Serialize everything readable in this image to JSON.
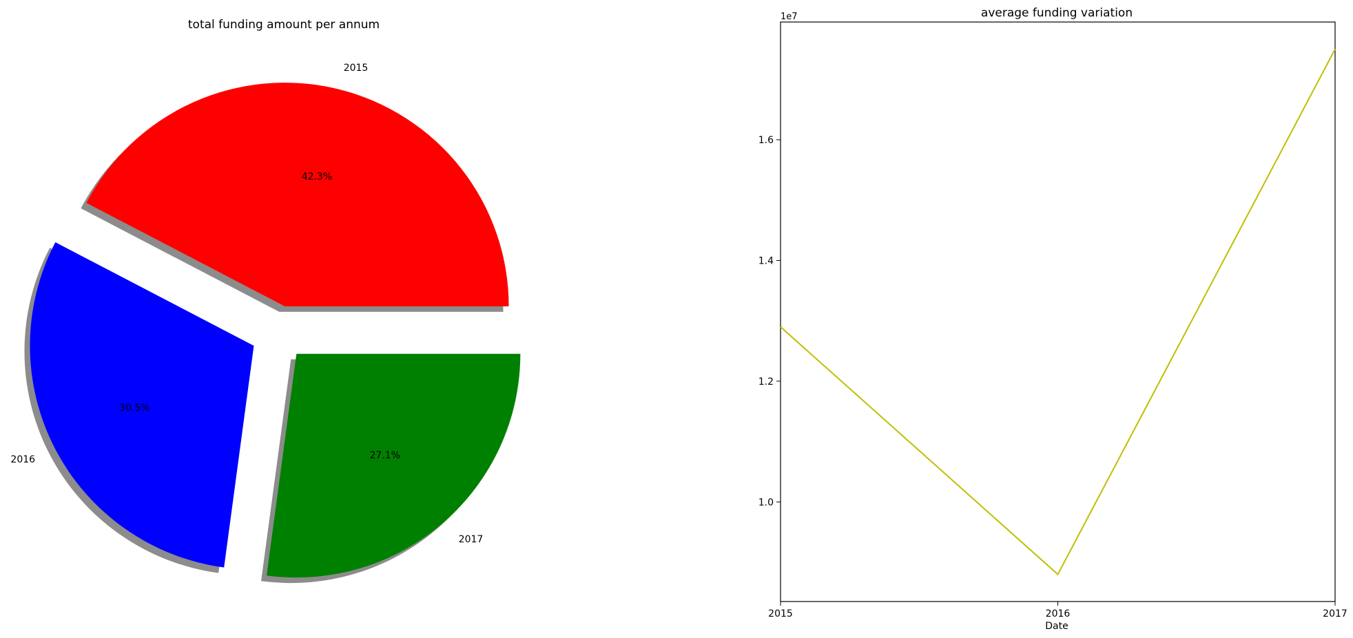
{
  "chart_data": [
    {
      "type": "pie",
      "title": "total funding amount per annum",
      "labels": [
        "2015",
        "2016",
        "2017"
      ],
      "values": [
        42.3,
        30.5,
        27.1
      ],
      "percent_labels": [
        "42.3%",
        "30.5%",
        "27.1%"
      ],
      "colors": [
        "#ff0000",
        "#0000ff",
        "#008000"
      ],
      "explode": true,
      "shadow": true
    },
    {
      "type": "line",
      "title": "average funding variation",
      "xlabel": "Date",
      "ylabel": "",
      "x": [
        "2015",
        "2016",
        "2017"
      ],
      "y": [
        12900000,
        8800000,
        17500000
      ],
      "y_offset_label": "1e7",
      "y_ticks": [
        "1.0",
        "1.2",
        "1.4",
        "1.6"
      ],
      "y_tick_values": [
        10000000,
        12000000,
        14000000,
        16000000
      ],
      "ylim": [
        8350000,
        17950000
      ],
      "xlim": [
        "2015",
        "2017"
      ],
      "line_color": "#bfbf00",
      "grid": false
    }
  ]
}
